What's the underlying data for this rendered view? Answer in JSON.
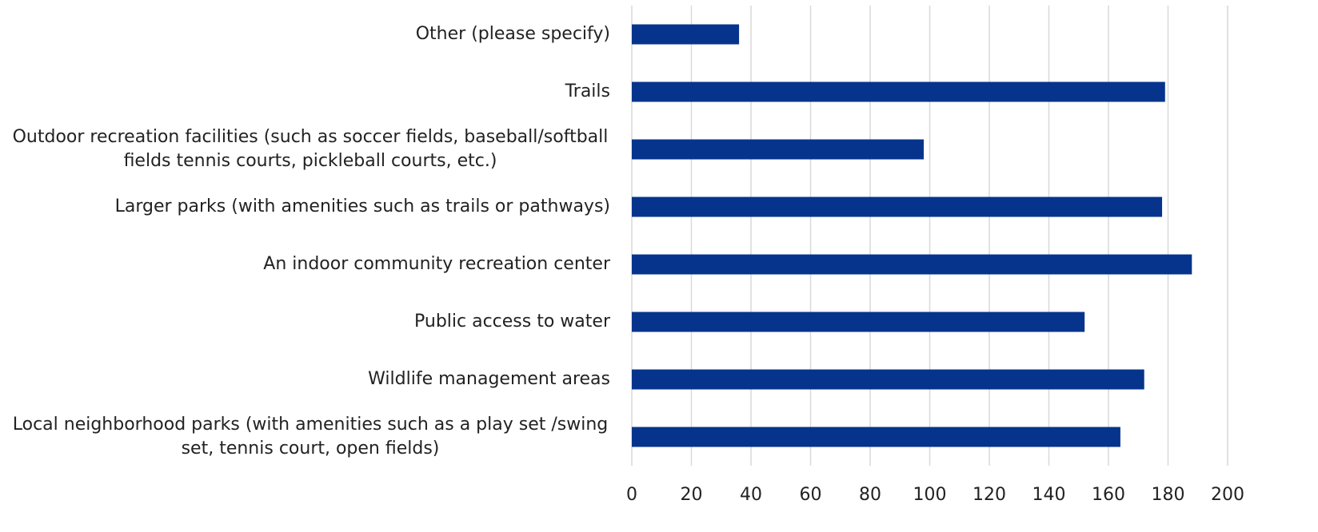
{
  "chart_data": {
    "type": "hbar",
    "categories": [
      "Other (please specify)",
      "Trails",
      "Outdoor recreation facilities (such as soccer fields, baseball/softball fields tennis courts, pickleball courts, etc.)",
      "Larger parks (with amenities such as trails or pathways)",
      "An indoor community recreation center",
      "Public access to water",
      "Wildlife management areas",
      "Local neighborhood parks (with amenities such as a play set /swing set, tennis court, open fields)"
    ],
    "values": [
      36,
      179,
      98,
      178,
      188,
      152,
      172,
      164
    ],
    "color": "#06348c",
    "xlim": [
      0,
      200
    ],
    "xticks": [
      0,
      20,
      40,
      60,
      80,
      100,
      120,
      140,
      160,
      180,
      200
    ],
    "grid": true
  }
}
